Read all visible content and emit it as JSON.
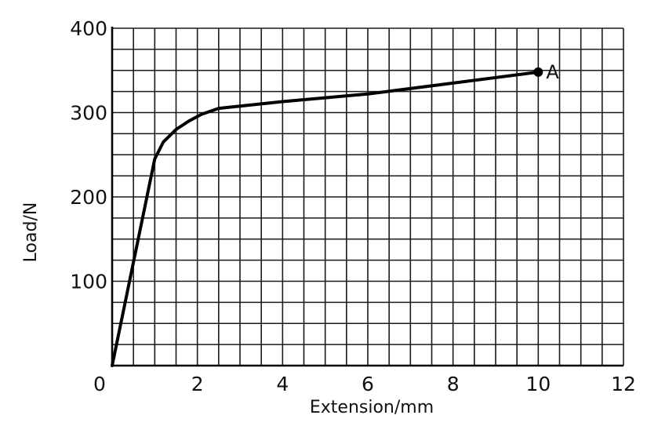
{
  "chart_data": {
    "type": "line",
    "title": "",
    "xlabel": "Extension/mm",
    "ylabel": "Load/N",
    "xlim": [
      0,
      12
    ],
    "ylim": [
      0,
      400
    ],
    "grid": true,
    "x_minor_step": 0.5,
    "y_minor_step": 25,
    "x_ticks": [
      "0",
      "2",
      "4",
      "6",
      "8",
      "10",
      "12"
    ],
    "y_ticks": [
      "100",
      "200",
      "300",
      "400"
    ],
    "series": [
      {
        "x": [
          0,
          1.0,
          1.2,
          1.5,
          1.8,
          2.1,
          2.5,
          4,
          6,
          8,
          10
        ],
        "y": [
          0,
          245,
          265,
          280,
          290,
          298,
          305,
          313,
          322,
          335,
          348
        ]
      }
    ],
    "point": {
      "label": "A",
      "x": 10,
      "y": 348
    }
  }
}
